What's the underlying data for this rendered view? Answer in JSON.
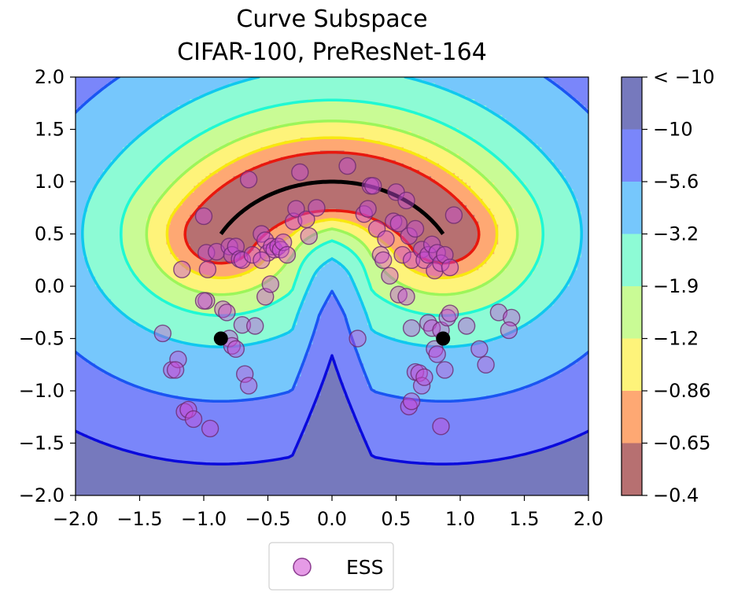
{
  "chart_data": {
    "type": "contour",
    "title_lines": [
      "Curve Subspace",
      "CIFAR-100, PreResNet-164"
    ],
    "xlim": [
      -2.0,
      2.0
    ],
    "ylim": [
      -2.0,
      2.0
    ],
    "x_ticks": [
      -2.0,
      -1.5,
      -1.0,
      -0.5,
      0.0,
      0.5,
      1.0,
      1.5,
      2.0
    ],
    "y_ticks": [
      -2.0,
      -1.5,
      -1.0,
      -0.5,
      0.0,
      0.5,
      1.0,
      1.5,
      2.0
    ],
    "x_tick_labels": [
      "−2.0",
      "−1.5",
      "−1.0",
      "−0.5",
      "0.0",
      "0.5",
      "1.0",
      "1.5",
      "2.0"
    ],
    "y_tick_labels": [
      "−2.0",
      "−1.5",
      "−1.0",
      "−0.5",
      "0.0",
      "0.5",
      "1.0",
      "1.5",
      "2.0"
    ],
    "colorbar": {
      "labels": [
        "< −10",
        "−10",
        "−5.6",
        "−3.2",
        "−1.9",
        "−1.2",
        "−0.86",
        "−0.65",
        "−0.4"
      ],
      "colors": [
        "#7679bd",
        "#7a86fa",
        "#76c7fc",
        "#8dfbd5",
        "#c9fb95",
        "#fef37a",
        "#fea873",
        "#b77071"
      ],
      "line_colors": [
        "#0a0adc",
        "#1a55f2",
        "#10c8ee",
        "#1ff8d4",
        "#9cf55a",
        "#f8e80f",
        "#ff7b1a",
        "#e8180e"
      ]
    },
    "contour_levels": [
      2.2,
      1.6,
      1.08,
      0.78,
      0.58,
      0.42,
      0.28
    ],
    "contour_colors": [
      "#7a86fa",
      "#76c7fc",
      "#8dfbd5",
      "#c9fb95",
      "#fef37a",
      "#fea873",
      "#b77071"
    ],
    "contour_line_colors": [
      "#0a0adc",
      "#1a55f2",
      "#10c8ee",
      "#1ff8d4",
      "#9cf55a",
      "#f8e80f",
      "#e8180e"
    ],
    "background_color": "#7679bd",
    "curve": {
      "name": "curve",
      "color": "#000000",
      "endpoints": [
        [
          -0.866,
          -0.5
        ],
        [
          0.866,
          -0.5
        ]
      ],
      "radius": 1.0,
      "center": [
        0.0,
        0.0
      ],
      "theta_range_deg": [
        30,
        150
      ]
    },
    "legend": {
      "label": "ESS",
      "marker_color": "#e59be6",
      "marker_edge": "#8b3a8f",
      "position": "below-center"
    },
    "ess_points": [
      [
        -1.32,
        -0.45
      ],
      [
        -1.25,
        -0.8
      ],
      [
        -1.2,
        -0.7
      ],
      [
        -1.22,
        -0.8
      ],
      [
        -1.15,
        -1.2
      ],
      [
        -1.12,
        -1.18
      ],
      [
        -1.08,
        -1.27
      ],
      [
        -0.95,
        -1.36
      ],
      [
        -1.17,
        0.16
      ],
      [
        -1.0,
        0.67
      ],
      [
        -0.98,
        0.32
      ],
      [
        -0.97,
        0.16
      ],
      [
        -0.98,
        -0.14
      ],
      [
        -1.0,
        -0.14
      ],
      [
        -0.9,
        0.33
      ],
      [
        -0.8,
        0.38
      ],
      [
        -0.78,
        0.3
      ],
      [
        -0.75,
        0.38
      ],
      [
        -0.72,
        0.26
      ],
      [
        -0.7,
        0.25
      ],
      [
        -0.65,
        1.02
      ],
      [
        -0.62,
        0.3
      ],
      [
        -0.55,
        0.5
      ],
      [
        -0.52,
        0.44
      ],
      [
        -0.5,
        0.32
      ],
      [
        -0.47,
        0.38
      ],
      [
        -0.45,
        0.35
      ],
      [
        -0.42,
        0.38
      ],
      [
        -0.4,
        0.35
      ],
      [
        -0.38,
        0.42
      ],
      [
        -0.35,
        0.3
      ],
      [
        -0.3,
        0.62
      ],
      [
        -0.28,
        0.74
      ],
      [
        -0.25,
        1.09
      ],
      [
        -0.2,
        0.64
      ],
      [
        -0.18,
        0.48
      ],
      [
        -0.12,
        0.75
      ],
      [
        -0.85,
        -0.22
      ],
      [
        -0.82,
        -0.25
      ],
      [
        -0.8,
        -0.5
      ],
      [
        -0.78,
        -0.57
      ],
      [
        -0.75,
        -0.6
      ],
      [
        -0.7,
        -0.37
      ],
      [
        -0.68,
        -0.84
      ],
      [
        -0.65,
        -0.95
      ],
      [
        -0.6,
        -0.38
      ],
      [
        -0.55,
        0.25
      ],
      [
        -0.52,
        -0.1
      ],
      [
        -0.48,
        0.02
      ],
      [
        0.12,
        1.15
      ],
      [
        0.25,
        0.69
      ],
      [
        0.28,
        0.74
      ],
      [
        0.3,
        0.96
      ],
      [
        0.32,
        0.96
      ],
      [
        0.35,
        0.55
      ],
      [
        0.38,
        0.3
      ],
      [
        0.4,
        0.25
      ],
      [
        0.42,
        0.45
      ],
      [
        0.45,
        0.1
      ],
      [
        0.48,
        0.62
      ],
      [
        0.5,
        0.9
      ],
      [
        0.52,
        0.6
      ],
      [
        0.55,
        0.3
      ],
      [
        0.58,
        0.82
      ],
      [
        0.6,
        0.48
      ],
      [
        0.62,
        0.25
      ],
      [
        0.65,
        0.55
      ],
      [
        0.7,
        0.35
      ],
      [
        0.72,
        0.25
      ],
      [
        0.75,
        0.3
      ],
      [
        0.78,
        0.4
      ],
      [
        0.8,
        0.15
      ],
      [
        0.82,
        0.32
      ],
      [
        0.85,
        0.22
      ],
      [
        0.88,
        0.3
      ],
      [
        0.92,
        0.18
      ],
      [
        0.95,
        0.68
      ],
      [
        0.52,
        -0.08
      ],
      [
        0.58,
        -0.1
      ],
      [
        0.62,
        -0.4
      ],
      [
        0.65,
        -0.82
      ],
      [
        0.68,
        -0.83
      ],
      [
        0.7,
        -0.95
      ],
      [
        0.72,
        -0.87
      ],
      [
        0.75,
        -0.35
      ],
      [
        0.78,
        -0.4
      ],
      [
        0.8,
        -0.6
      ],
      [
        0.82,
        -0.65
      ],
      [
        0.85,
        -0.42
      ],
      [
        0.88,
        -0.8
      ],
      [
        0.9,
        -0.3
      ],
      [
        0.92,
        -0.26
      ],
      [
        1.05,
        -0.38
      ],
      [
        1.15,
        -0.6
      ],
      [
        1.2,
        -0.75
      ],
      [
        1.3,
        -0.25
      ],
      [
        1.4,
        -0.3
      ],
      [
        1.38,
        -0.42
      ],
      [
        0.6,
        -1.15
      ],
      [
        0.62,
        -1.1
      ],
      [
        0.85,
        -1.34
      ],
      [
        0.2,
        -0.5
      ]
    ]
  }
}
